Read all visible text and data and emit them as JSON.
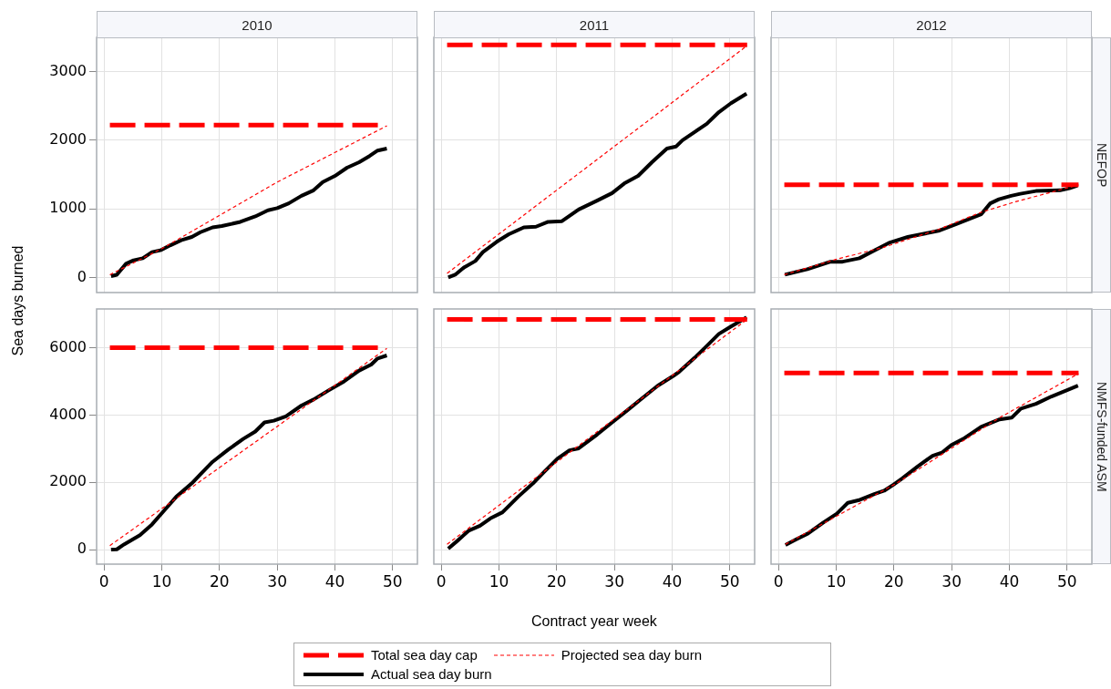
{
  "chart_data": [
    {
      "type": "line",
      "title": "2010",
      "ylabel": "Sea days burned",
      "xlim": [
        -1.3,
        54.3
      ],
      "xticks": [
        0,
        10,
        20,
        30,
        40,
        50
      ],
      "ylim": [
        -220,
        3500
      ],
      "yticks": [
        0,
        1000,
        2000,
        3000
      ],
      "grid": true,
      "marker": "none",
      "legend": "bottom",
      "tick_labels": "y",
      "series": [
        {
          "name": "Total sea day cap",
          "color": "#ff0000",
          "line_style": "dashed",
          "x": [
            1,
            49
          ],
          "values": [
            2220,
            2220
          ]
        },
        {
          "name": "Projected sea day burn",
          "color": "#ff0000",
          "line_style": "dotted",
          "x": [
            1,
            10,
            30,
            49
          ],
          "values": [
            40,
            420,
            1390,
            2210
          ]
        },
        {
          "name": "Actual sea day burn",
          "color": "#000000",
          "line_style": "solid",
          "x": [
            1.2,
            2.2,
            3.8,
            5.1,
            6.7,
            8.3,
            9.9,
            11.5,
            13.6,
            15.2,
            16.7,
            18.8,
            20.4,
            23.6,
            26.2,
            28.4,
            30,
            32,
            34.2,
            36.3,
            37.9,
            40,
            42.1,
            44.2,
            46,
            47.4,
            49
          ],
          "values": [
            20,
            40,
            200,
            250,
            280,
            370,
            400,
            470,
            550,
            590,
            660,
            730,
            750,
            810,
            890,
            980,
            1010,
            1080,
            1190,
            1270,
            1390,
            1480,
            1600,
            1680,
            1770,
            1850,
            1880
          ]
        }
      ]
    },
    {
      "type": "line",
      "title": "2011",
      "xlim": [
        -1.3,
        54.3
      ],
      "xticks": [
        0,
        10,
        20,
        30,
        40,
        50
      ],
      "ylim": [
        -220,
        3500
      ],
      "yticks": [
        0,
        1000,
        2000,
        3000
      ],
      "grid": true,
      "marker": "none",
      "tick_labels": false,
      "series": [
        {
          "color": "#ff0000",
          "line_style": "dashed",
          "x": [
            1,
            53
          ],
          "values": [
            3390,
            3390
          ]
        },
        {
          "color": "#ff0000",
          "line_style": "dotted",
          "x": [
            1,
            53
          ],
          "values": [
            60,
            3380
          ]
        },
        {
          "color": "#000000",
          "line_style": "solid",
          "x": [
            1.2,
            2.4,
            4,
            5.9,
            7.2,
            9.6,
            11.7,
            14.3,
            16.4,
            18.5,
            20.9,
            23.8,
            27,
            29.6,
            31.7,
            34.1,
            36.5,
            39.1,
            40.7,
            41.8,
            43.9,
            46,
            48.1,
            50.2,
            52.9
          ],
          "values": [
            0,
            40,
            150,
            240,
            370,
            520,
            630,
            730,
            740,
            810,
            820,
            990,
            1120,
            1230,
            1370,
            1480,
            1680,
            1880,
            1910,
            2000,
            2120,
            2240,
            2410,
            2540,
            2680
          ]
        }
      ]
    },
    {
      "type": "line",
      "title": "2012",
      "annotations": [
        "NEFOP"
      ],
      "xlim": [
        -1.3,
        54.3
      ],
      "xticks": [
        0,
        10,
        20,
        30,
        40,
        50
      ],
      "ylim": [
        -220,
        3500
      ],
      "yticks": [
        0,
        1000,
        2000,
        3000
      ],
      "grid": true,
      "marker": "none",
      "tick_labels": false,
      "series": [
        {
          "color": "#ff0000",
          "line_style": "dashed",
          "x": [
            1,
            52
          ],
          "values": [
            1350,
            1350
          ]
        },
        {
          "color": "#ff0000",
          "line_style": "dotted",
          "x": [
            1,
            9.8,
            18.2,
            27.7,
            35.1,
            40.9,
            46.7,
            52
          ],
          "values": [
            40,
            260,
            440,
            700,
            950,
            1100,
            1230,
            1350
          ]
        },
        {
          "color": "#000000",
          "line_style": "solid",
          "x": [
            1.1,
            5,
            9,
            11.1,
            14,
            17.7,
            19.3,
            22.4,
            27.7,
            30.9,
            35.1,
            36.7,
            38.2,
            40.3,
            41.9,
            44.6,
            48.8,
            50.4,
            51.8
          ],
          "values": [
            40,
            120,
            230,
            230,
            280,
            440,
            510,
            590,
            680,
            780,
            920,
            1080,
            1140,
            1190,
            1220,
            1260,
            1270,
            1300,
            1340
          ]
        }
      ]
    },
    {
      "type": "line",
      "xlim": [
        -1.3,
        54.3
      ],
      "xticks": [
        0,
        10,
        20,
        30,
        40,
        50
      ],
      "ylim": [
        -430,
        7150
      ],
      "yticks": [
        0,
        2000,
        4000,
        6000
      ],
      "grid": true,
      "marker": "none",
      "series": [
        {
          "color": "#ff0000",
          "line_style": "dashed",
          "x": [
            1,
            49
          ],
          "values": [
            6000,
            6000
          ]
        },
        {
          "color": "#ff0000",
          "line_style": "dotted",
          "x": [
            1,
            49
          ],
          "values": [
            120,
            5980
          ]
        },
        {
          "color": "#000000",
          "line_style": "solid",
          "x": [
            1.2,
            2.2,
            3.5,
            6.2,
            8.3,
            10.4,
            12.5,
            15.2,
            16.7,
            18.8,
            21.5,
            24.1,
            26.2,
            27.8,
            29.4,
            31.5,
            34.2,
            36.3,
            38.9,
            41.6,
            44.2,
            46.3,
            47.4,
            49
          ],
          "values": [
            0,
            10,
            160,
            430,
            750,
            1160,
            1570,
            1970,
            2240,
            2610,
            2970,
            3290,
            3510,
            3780,
            3830,
            3960,
            4280,
            4460,
            4730,
            5000,
            5320,
            5500,
            5680,
            5770
          ]
        }
      ]
    },
    {
      "type": "line",
      "xlabel": "Contract year week",
      "xlim": [
        -1.3,
        54.3
      ],
      "xticks": [
        0,
        10,
        20,
        30,
        40,
        50
      ],
      "ylim": [
        -430,
        7150
      ],
      "yticks": [
        0,
        2000,
        4000,
        6000
      ],
      "grid": true,
      "marker": "none",
      "tick_labels": "x",
      "series": [
        {
          "color": "#ff0000",
          "line_style": "dashed",
          "x": [
            1,
            53
          ],
          "values": [
            6840,
            6840
          ]
        },
        {
          "color": "#ff0000",
          "line_style": "dotted",
          "x": [
            1,
            53
          ],
          "values": [
            160,
            6840
          ]
        },
        {
          "color": "#000000",
          "line_style": "solid",
          "x": [
            1.2,
            2.7,
            4.8,
            6.7,
            8.5,
            10.6,
            13.3,
            15.9,
            18,
            20.1,
            22.2,
            23.8,
            27,
            29.6,
            32.3,
            34.9,
            37.5,
            40.2,
            41.2,
            43.9,
            46,
            48.1,
            50.2,
            52.9
          ],
          "values": [
            30,
            250,
            570,
            710,
            930,
            1110,
            1570,
            1970,
            2340,
            2700,
            2950,
            3010,
            3420,
            3780,
            4150,
            4510,
            4870,
            5160,
            5280,
            5700,
            6050,
            6410,
            6630,
            6900
          ]
        }
      ]
    },
    {
      "type": "line",
      "annotations": [
        "NMFS-funded ASM"
      ],
      "xlim": [
        -1.3,
        54.3
      ],
      "xticks": [
        0,
        10,
        20,
        30,
        40,
        50
      ],
      "ylim": [
        -430,
        7150
      ],
      "yticks": [
        0,
        2000,
        4000,
        6000
      ],
      "grid": true,
      "marker": "none",
      "tick_labels": "x",
      "series": [
        {
          "color": "#ff0000",
          "line_style": "dashed",
          "x": [
            1,
            52
          ],
          "values": [
            5250,
            5250
          ]
        },
        {
          "color": "#ff0000",
          "line_style": "dotted",
          "x": [
            1.2,
            20.4,
            38.3,
            52
          ],
          "values": [
            160,
            1970,
            3920,
            5230
          ]
        },
        {
          "color": "#000000",
          "line_style": "solid",
          "x": [
            1.2,
            3,
            5.1,
            7.7,
            10.1,
            12,
            14.1,
            16.7,
            18.3,
            19.9,
            21.4,
            24.1,
            26.7,
            28.3,
            29.9,
            32,
            35.1,
            38.3,
            40.4,
            42,
            44.6,
            47.3,
            49.9,
            51.9
          ],
          "values": [
            140,
            300,
            480,
            800,
            1070,
            1390,
            1480,
            1660,
            1750,
            1930,
            2110,
            2470,
            2790,
            2880,
            3100,
            3290,
            3650,
            3870,
            3920,
            4190,
            4330,
            4550,
            4730,
            4870
          ]
        }
      ]
    }
  ]
}
